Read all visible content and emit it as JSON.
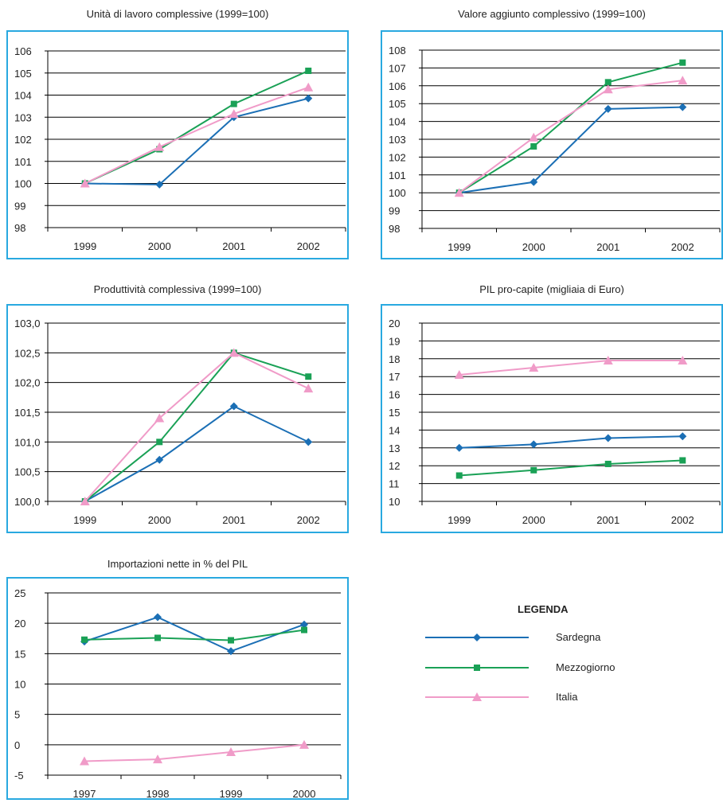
{
  "series_style": [
    {
      "name": "Sardegna",
      "color": "#1b6fb5",
      "marker": "diamond"
    },
    {
      "name": "Mezzogiorno",
      "color": "#1aa156",
      "marker": "square"
    },
    {
      "name": "Italia",
      "color": "#f09bc8",
      "marker": "triangle"
    }
  ],
  "legend": {
    "title": "LEGENDA",
    "items": [
      "Sardegna",
      "Mezzogiorno",
      "Italia"
    ]
  },
  "chart_data": [
    {
      "type": "line",
      "title": "Unità di lavoro complessive (1999=100)",
      "categories": [
        "1999",
        "2000",
        "2001",
        "2002"
      ],
      "ylim": [
        98,
        106
      ],
      "yticks": [
        "98",
        "99",
        "100",
        "101",
        "102",
        "103",
        "104",
        "105",
        "106"
      ],
      "grid": true,
      "series": [
        {
          "name": "Sardegna",
          "values": [
            100.0,
            99.95,
            103.0,
            103.85
          ]
        },
        {
          "name": "Mezzogiorno",
          "values": [
            100.0,
            101.55,
            103.6,
            105.1
          ]
        },
        {
          "name": "Italia",
          "values": [
            100.0,
            101.65,
            103.15,
            104.35
          ]
        }
      ]
    },
    {
      "type": "line",
      "title": "Valore aggiunto complessivo (1999=100)",
      "categories": [
        "1999",
        "2000",
        "2001",
        "2002"
      ],
      "ylim": [
        98,
        108
      ],
      "yticks": [
        "98",
        "99",
        "100",
        "101",
        "102",
        "103",
        "104",
        "105",
        "106",
        "107",
        "108"
      ],
      "grid": true,
      "series": [
        {
          "name": "Sardegna",
          "values": [
            100.0,
            100.6,
            104.7,
            104.8
          ]
        },
        {
          "name": "Mezzogiorno",
          "values": [
            100.0,
            102.6,
            106.2,
            107.3
          ]
        },
        {
          "name": "Italia",
          "values": [
            100.0,
            103.1,
            105.8,
            106.3
          ]
        }
      ]
    },
    {
      "type": "line",
      "title": "Produttività complessiva (1999=100)",
      "categories": [
        "1999",
        "2000",
        "2001",
        "2002"
      ],
      "ylim": [
        100.0,
        103.0
      ],
      "yticks": [
        "100,0",
        "100,5",
        "101,0",
        "101,5",
        "102,0",
        "102,5",
        "103,0"
      ],
      "grid": true,
      "series": [
        {
          "name": "Sardegna",
          "values": [
            100.0,
            100.7,
            101.6,
            101.0
          ]
        },
        {
          "name": "Mezzogiorno",
          "values": [
            100.0,
            101.0,
            102.5,
            102.1
          ]
        },
        {
          "name": "Italia",
          "values": [
            100.0,
            101.4,
            102.5,
            101.9
          ]
        }
      ]
    },
    {
      "type": "line",
      "title": "PIL pro-capite (migliaia di Euro)",
      "categories": [
        "1999",
        "2000",
        "2001",
        "2002"
      ],
      "ylim": [
        10,
        20
      ],
      "yticks": [
        "10",
        "11",
        "12",
        "13",
        "14",
        "15",
        "16",
        "17",
        "18",
        "19",
        "20"
      ],
      "grid": true,
      "series": [
        {
          "name": "Sardegna",
          "values": [
            13.0,
            13.2,
            13.55,
            13.65
          ]
        },
        {
          "name": "Mezzogiorno",
          "values": [
            11.45,
            11.75,
            12.1,
            12.3
          ]
        },
        {
          "name": "Italia",
          "values": [
            17.1,
            17.5,
            17.9,
            17.9
          ]
        }
      ]
    },
    {
      "type": "line",
      "title": "Importazioni nette in % del PIL",
      "categories": [
        "1997",
        "1998",
        "1999",
        "2000"
      ],
      "ylim": [
        -5,
        25
      ],
      "yticks": [
        "-5",
        "0",
        "5",
        "10",
        "15",
        "20",
        "25"
      ],
      "grid": true,
      "series": [
        {
          "name": "Sardegna",
          "values": [
            17.0,
            21.0,
            15.4,
            19.8
          ]
        },
        {
          "name": "Mezzogiorno",
          "values": [
            17.3,
            17.6,
            17.2,
            18.9
          ]
        },
        {
          "name": "Italia",
          "values": [
            -2.7,
            -2.4,
            -1.2,
            0.0
          ]
        }
      ]
    }
  ]
}
